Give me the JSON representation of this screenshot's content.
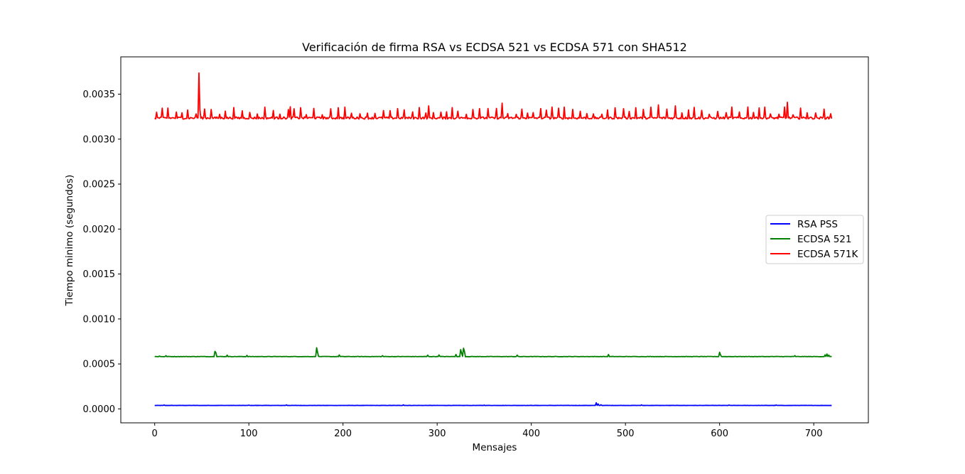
{
  "chart_data": {
    "type": "line",
    "title": "Verificación de firma RSA vs ECDSA 521 vs ECDSA 571 con SHA512",
    "xlabel": "Mensajes",
    "ylabel": "Tiempo minimo (segundos)",
    "xlim": [
      -36,
      758
    ],
    "ylim": [
      -0.000155,
      0.003915
    ],
    "x_ticks": [
      0,
      100,
      200,
      300,
      400,
      500,
      600,
      700
    ],
    "x_tick_labels": [
      "0",
      "100",
      "200",
      "300",
      "400",
      "500",
      "600",
      "700"
    ],
    "y_ticks": [
      0.0,
      0.0005,
      0.001,
      0.0015,
      0.002,
      0.0025,
      0.003,
      0.0035
    ],
    "y_tick_labels": [
      "0.0000",
      "0.0005",
      "0.0010",
      "0.0015",
      "0.0020",
      "0.0025",
      "0.0030",
      "0.0035"
    ],
    "grid": false,
    "legend_position": "center-right",
    "n_points": 720,
    "series": [
      {
        "name": "RSA PSS",
        "color": "#0000ff",
        "baseline": 3.85e-05,
        "noise": 8e-07,
        "spikes": [
          [
            10,
            4.3e-05
          ],
          [
            100,
            4.2e-05
          ],
          [
            140,
            4.4e-05
          ],
          [
            264,
            4.5e-05
          ],
          [
            350,
            4.2e-05
          ],
          [
            469,
            6.8e-05
          ],
          [
            471,
            5.5e-05
          ],
          [
            474,
            4.6e-05
          ],
          [
            517,
            4.4e-05
          ],
          [
            610,
            4.3e-05
          ],
          [
            660,
            4.3e-05
          ]
        ]
      },
      {
        "name": "ECDSA 521",
        "color": "#008000",
        "baseline": 0.000582,
        "noise": 2e-06,
        "spikes": [
          [
            5,
            0.000588
          ],
          [
            12,
            0.000592
          ],
          [
            64,
            0.00064
          ],
          [
            65,
            0.000625
          ],
          [
            77,
            0.000598
          ],
          [
            98,
            0.000595
          ],
          [
            172,
            0.00068
          ],
          [
            173,
            0.00063
          ],
          [
            196,
            0.0006
          ],
          [
            242,
            0.000592
          ],
          [
            290,
            0.000598
          ],
          [
            302,
            0.0006
          ],
          [
            320,
            0.000605
          ],
          [
            325,
            0.00066
          ],
          [
            326,
            0.00062
          ],
          [
            328,
            0.000675
          ],
          [
            329,
            0.00064
          ],
          [
            385,
            0.000598
          ],
          [
            482,
            0.000605
          ],
          [
            600,
            0.00063
          ],
          [
            601,
            0.0006
          ],
          [
            680,
            0.000592
          ],
          [
            712,
            0.0006
          ],
          [
            714,
            0.00061
          ],
          [
            716,
            0.000598
          ]
        ]
      },
      {
        "name": "ECDSA 571K",
        "color": "#ff0000",
        "baseline": 0.003235,
        "noise": 1.2e-05,
        "spike_step": 6,
        "spike_range": [
          0.00327,
          0.00336
        ],
        "spikes": [
          [
            47,
            0.003735
          ],
          [
            48,
            0.00333
          ],
          [
            369,
            0.0034
          ],
          [
            535,
            0.00338
          ],
          [
            553,
            0.00337
          ],
          [
            672,
            0.00341
          ],
          [
            144,
            0.00336
          ],
          [
            291,
            0.00337
          ]
        ]
      }
    ]
  }
}
